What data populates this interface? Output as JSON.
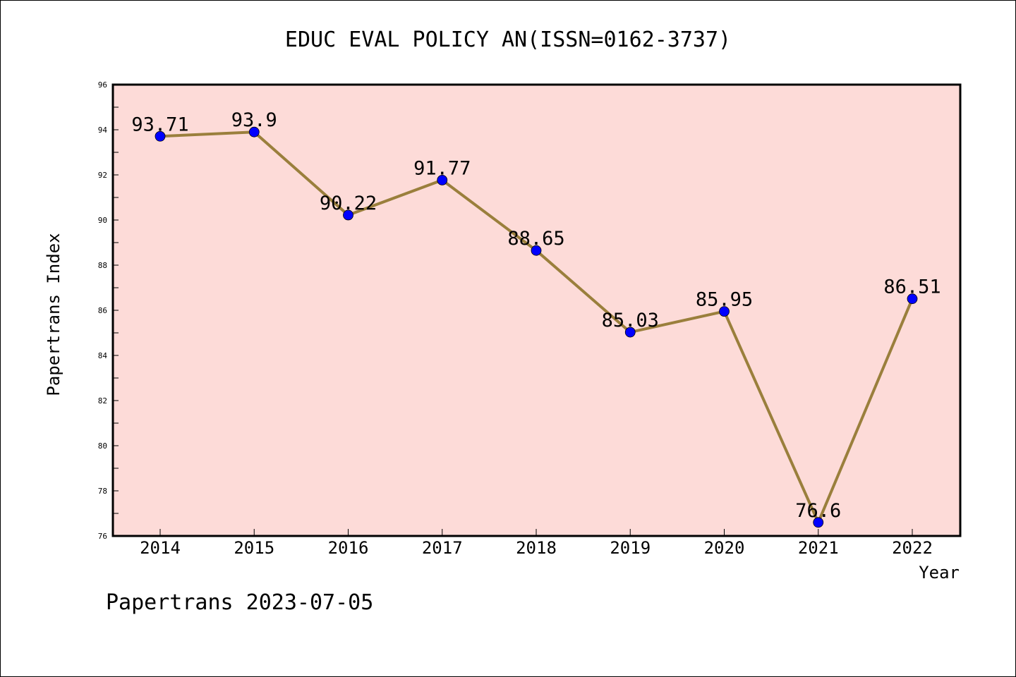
{
  "chart_data": {
    "type": "line",
    "title": "EDUC EVAL POLICY AN(ISSN=0162-3737)",
    "xlabel": "Year",
    "ylabel": "Papertrans Index",
    "categories": [
      "2014",
      "2015",
      "2016",
      "2017",
      "2018",
      "2019",
      "2020",
      "2021",
      "2022"
    ],
    "series": [
      {
        "values": [
          93.71,
          93.9,
          90.22,
          91.77,
          88.65,
          85.03,
          85.95,
          76.6,
          86.51
        ],
        "labels": [
          "93.71",
          "93.9",
          "90.22",
          "91.77",
          "88.65",
          "85.03",
          "85.95",
          "76.6",
          "86.51"
        ]
      }
    ],
    "ylim": [
      76,
      96
    ],
    "yticks": [
      "76",
      "78",
      "80",
      "82",
      "84",
      "86",
      "88",
      "90",
      "92",
      "94",
      "96"
    ],
    "grid": false,
    "legend": "none",
    "colors": {
      "plot_background": "#fddbd8",
      "line": "#9a7f3c",
      "marker": "#0000ff"
    }
  },
  "footer": "Papertrans 2023-07-05"
}
